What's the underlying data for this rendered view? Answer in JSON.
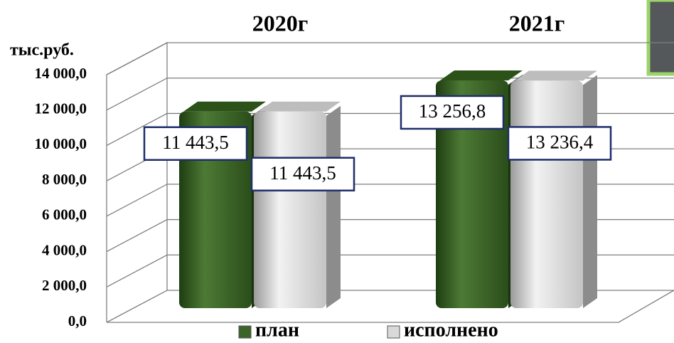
{
  "chart_data": {
    "type": "bar",
    "y_label": "тыс.руб.",
    "categories": [
      "2020г",
      "2021г"
    ],
    "series": [
      {
        "name": "план",
        "color": "#3b6428",
        "values": [
          11443.5,
          13256.8
        ],
        "value_labels": [
          "11 443,5",
          "13 256,8"
        ]
      },
      {
        "name": "исполнено",
        "color": "#d9d9d9",
        "values": [
          11443.5,
          13236.4
        ],
        "value_labels": [
          "11 443,5",
          "13 236,4"
        ]
      }
    ],
    "ylim": [
      0,
      14000
    ],
    "yticks": [
      {
        "value": 0,
        "label": "0,0"
      },
      {
        "value": 2000,
        "label": "2 000,0"
      },
      {
        "value": 4000,
        "label": "4 000,0"
      },
      {
        "value": 6000,
        "label": "6 000,0"
      },
      {
        "value": 8000,
        "label": "8 000,0"
      },
      {
        "value": 10000,
        "label": "10 000,0"
      },
      {
        "value": 12000,
        "label": "12 000,0"
      },
      {
        "value": 14000,
        "label": "14 000,0"
      }
    ],
    "grid": true,
    "legend": "bottom"
  }
}
